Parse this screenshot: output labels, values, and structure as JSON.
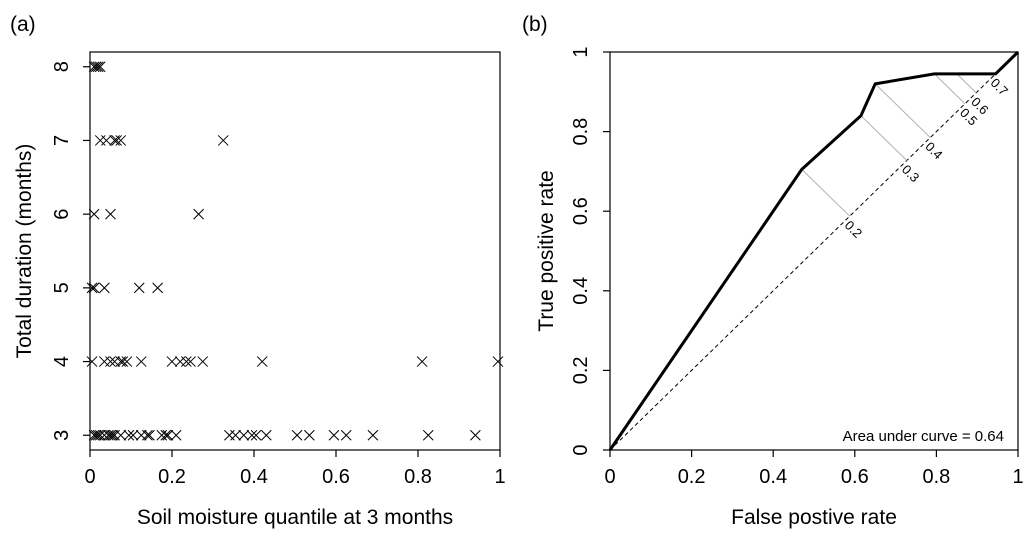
{
  "chart_data": [
    {
      "panel": "(a)",
      "type": "scatter",
      "xlabel": "Soil moisture quantile at 3 months",
      "ylabel": "Total duration (months)",
      "xlim": [
        0,
        1
      ],
      "ylim": [
        2.8,
        8.2
      ],
      "xticks": [
        "0",
        "0.2",
        "0.4",
        "0.6",
        "0.8",
        "1"
      ],
      "xtick_values": [
        0,
        0.2,
        0.4,
        0.6,
        0.8,
        1
      ],
      "yticks": [
        "3",
        "4",
        "5",
        "6",
        "7",
        "8"
      ],
      "ytick_values": [
        3,
        4,
        5,
        6,
        7,
        8
      ],
      "marker": "x",
      "points": [
        {
          "x": 0.01,
          "y": 8
        },
        {
          "x": 0.015,
          "y": 8
        },
        {
          "x": 0.02,
          "y": 8
        },
        {
          "x": 0.025,
          "y": 8
        },
        {
          "x": 0.025,
          "y": 7
        },
        {
          "x": 0.04,
          "y": 7
        },
        {
          "x": 0.06,
          "y": 7
        },
        {
          "x": 0.065,
          "y": 7
        },
        {
          "x": 0.075,
          "y": 7
        },
        {
          "x": 0.325,
          "y": 7
        },
        {
          "x": 0.01,
          "y": 6
        },
        {
          "x": 0.05,
          "y": 6
        },
        {
          "x": 0.265,
          "y": 6
        },
        {
          "x": 0.005,
          "y": 5
        },
        {
          "x": 0.01,
          "y": 5
        },
        {
          "x": 0.035,
          "y": 5
        },
        {
          "x": 0.12,
          "y": 5
        },
        {
          "x": 0.165,
          "y": 5
        },
        {
          "x": 0.005,
          "y": 4
        },
        {
          "x": 0.035,
          "y": 4
        },
        {
          "x": 0.05,
          "y": 4
        },
        {
          "x": 0.06,
          "y": 4
        },
        {
          "x": 0.075,
          "y": 4
        },
        {
          "x": 0.08,
          "y": 4
        },
        {
          "x": 0.09,
          "y": 4
        },
        {
          "x": 0.125,
          "y": 4
        },
        {
          "x": 0.2,
          "y": 4
        },
        {
          "x": 0.22,
          "y": 4
        },
        {
          "x": 0.235,
          "y": 4
        },
        {
          "x": 0.245,
          "y": 4
        },
        {
          "x": 0.275,
          "y": 4
        },
        {
          "x": 0.42,
          "y": 4
        },
        {
          "x": 0.81,
          "y": 4
        },
        {
          "x": 0.995,
          "y": 4
        },
        {
          "x": 0.01,
          "y": 3
        },
        {
          "x": 0.015,
          "y": 3
        },
        {
          "x": 0.02,
          "y": 3
        },
        {
          "x": 0.025,
          "y": 3
        },
        {
          "x": 0.035,
          "y": 3
        },
        {
          "x": 0.045,
          "y": 3
        },
        {
          "x": 0.05,
          "y": 3
        },
        {
          "x": 0.055,
          "y": 3
        },
        {
          "x": 0.06,
          "y": 3
        },
        {
          "x": 0.075,
          "y": 3
        },
        {
          "x": 0.095,
          "y": 3
        },
        {
          "x": 0.105,
          "y": 3
        },
        {
          "x": 0.125,
          "y": 3
        },
        {
          "x": 0.14,
          "y": 3
        },
        {
          "x": 0.145,
          "y": 3
        },
        {
          "x": 0.175,
          "y": 3
        },
        {
          "x": 0.185,
          "y": 3
        },
        {
          "x": 0.19,
          "y": 3
        },
        {
          "x": 0.21,
          "y": 3
        },
        {
          "x": 0.34,
          "y": 3
        },
        {
          "x": 0.355,
          "y": 3
        },
        {
          "x": 0.375,
          "y": 3
        },
        {
          "x": 0.395,
          "y": 3
        },
        {
          "x": 0.405,
          "y": 3
        },
        {
          "x": 0.43,
          "y": 3
        },
        {
          "x": 0.505,
          "y": 3
        },
        {
          "x": 0.535,
          "y": 3
        },
        {
          "x": 0.595,
          "y": 3
        },
        {
          "x": 0.625,
          "y": 3
        },
        {
          "x": 0.69,
          "y": 3
        },
        {
          "x": 0.825,
          "y": 3
        },
        {
          "x": 0.94,
          "y": 3
        }
      ]
    },
    {
      "panel": "(b)",
      "type": "line",
      "xlabel": "False postive rate",
      "ylabel": "True positive rate",
      "xlim": [
        0,
        1
      ],
      "ylim": [
        0,
        1
      ],
      "xticks": [
        "0",
        "0.2",
        "0.4",
        "0.6",
        "0.8",
        "1"
      ],
      "xtick_values": [
        0,
        0.2,
        0.4,
        0.6,
        0.8,
        1
      ],
      "yticks": [
        "0",
        "0.2",
        "0.4",
        "0.6",
        "0.8",
        "1"
      ],
      "ytick_values": [
        0,
        0.2,
        0.4,
        0.6,
        0.8,
        1
      ],
      "roc_curve": {
        "x": [
          0,
          0.47,
          0.615,
          0.65,
          0.795,
          0.945,
          1
        ],
        "y": [
          0,
          0.705,
          0.84,
          0.92,
          0.945,
          0.945,
          1
        ]
      },
      "diagonal": {
        "x": [
          0,
          1
        ],
        "y": [
          0,
          1
        ],
        "style": "dashed"
      },
      "thresholds": [
        {
          "label": "0.2",
          "x": 0.47,
          "y": 0.705
        },
        {
          "label": "0.3",
          "x": 0.615,
          "y": 0.84
        },
        {
          "label": "0.4",
          "x": 0.65,
          "y": 0.92
        },
        {
          "label": "0.5",
          "x": 0.795,
          "y": 0.945
        },
        {
          "label": "0.6",
          "x": 0.85,
          "y": 0.945
        },
        {
          "label": "0.7",
          "x": 0.945,
          "y": 0.945
        }
      ],
      "annotation": "Area under curve = 0.64"
    }
  ]
}
